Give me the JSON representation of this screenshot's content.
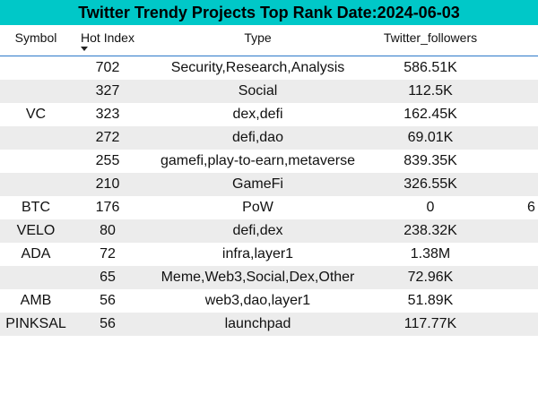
{
  "title": "Twitter Trendy Projects Top Rank Date:2024-06-03",
  "columns": {
    "symbol": "Symbol",
    "hot_index": "Hot Index",
    "type": "Type",
    "twitter_followers": "Twitter_followers"
  },
  "sort": {
    "column": "Hot Index",
    "direction": "descending",
    "icon": "sort-descending-icon"
  },
  "rows": [
    {
      "symbol": "",
      "hot_index": "702",
      "type": "Security,Research,Analysis",
      "twitter_followers": "586.51K",
      "extra": ""
    },
    {
      "symbol": "",
      "hot_index": "327",
      "type": "Social",
      "twitter_followers": "112.5K",
      "extra": ""
    },
    {
      "symbol": "VC",
      "hot_index": "323",
      "type": "dex,defi",
      "twitter_followers": "162.45K",
      "extra": ""
    },
    {
      "symbol": "",
      "hot_index": "272",
      "type": "defi,dao",
      "twitter_followers": "69.01K",
      "extra": ""
    },
    {
      "symbol": "",
      "hot_index": "255",
      "type": "gamefi,play-to-earn,metaverse",
      "twitter_followers": "839.35K",
      "extra": ""
    },
    {
      "symbol": "",
      "hot_index": "210",
      "type": "GameFi",
      "twitter_followers": "326.55K",
      "extra": ""
    },
    {
      "symbol": "BTC",
      "hot_index": "176",
      "type": "PoW",
      "twitter_followers": "0",
      "extra": "6"
    },
    {
      "symbol": "VELO",
      "hot_index": "80",
      "type": "defi,dex",
      "twitter_followers": "238.32K",
      "extra": ""
    },
    {
      "symbol": "ADA",
      "hot_index": "72",
      "type": "infra,layer1",
      "twitter_followers": "1.38M",
      "extra": ""
    },
    {
      "symbol": "",
      "hot_index": "65",
      "type": "Meme,Web3,Social,Dex,Other",
      "twitter_followers": "72.96K",
      "extra": ""
    },
    {
      "symbol": "AMB",
      "hot_index": "56",
      "type": "web3,dao,layer1",
      "twitter_followers": "51.89K",
      "extra": ""
    },
    {
      "symbol": "PINKSAL",
      "hot_index": "56",
      "type": "launchpad",
      "twitter_followers": "117.77K",
      "extra": ""
    }
  ],
  "colors": {
    "title_background": "#00c8c8",
    "header_divider": "#2c79c9",
    "alternate_row": "#ececec"
  }
}
